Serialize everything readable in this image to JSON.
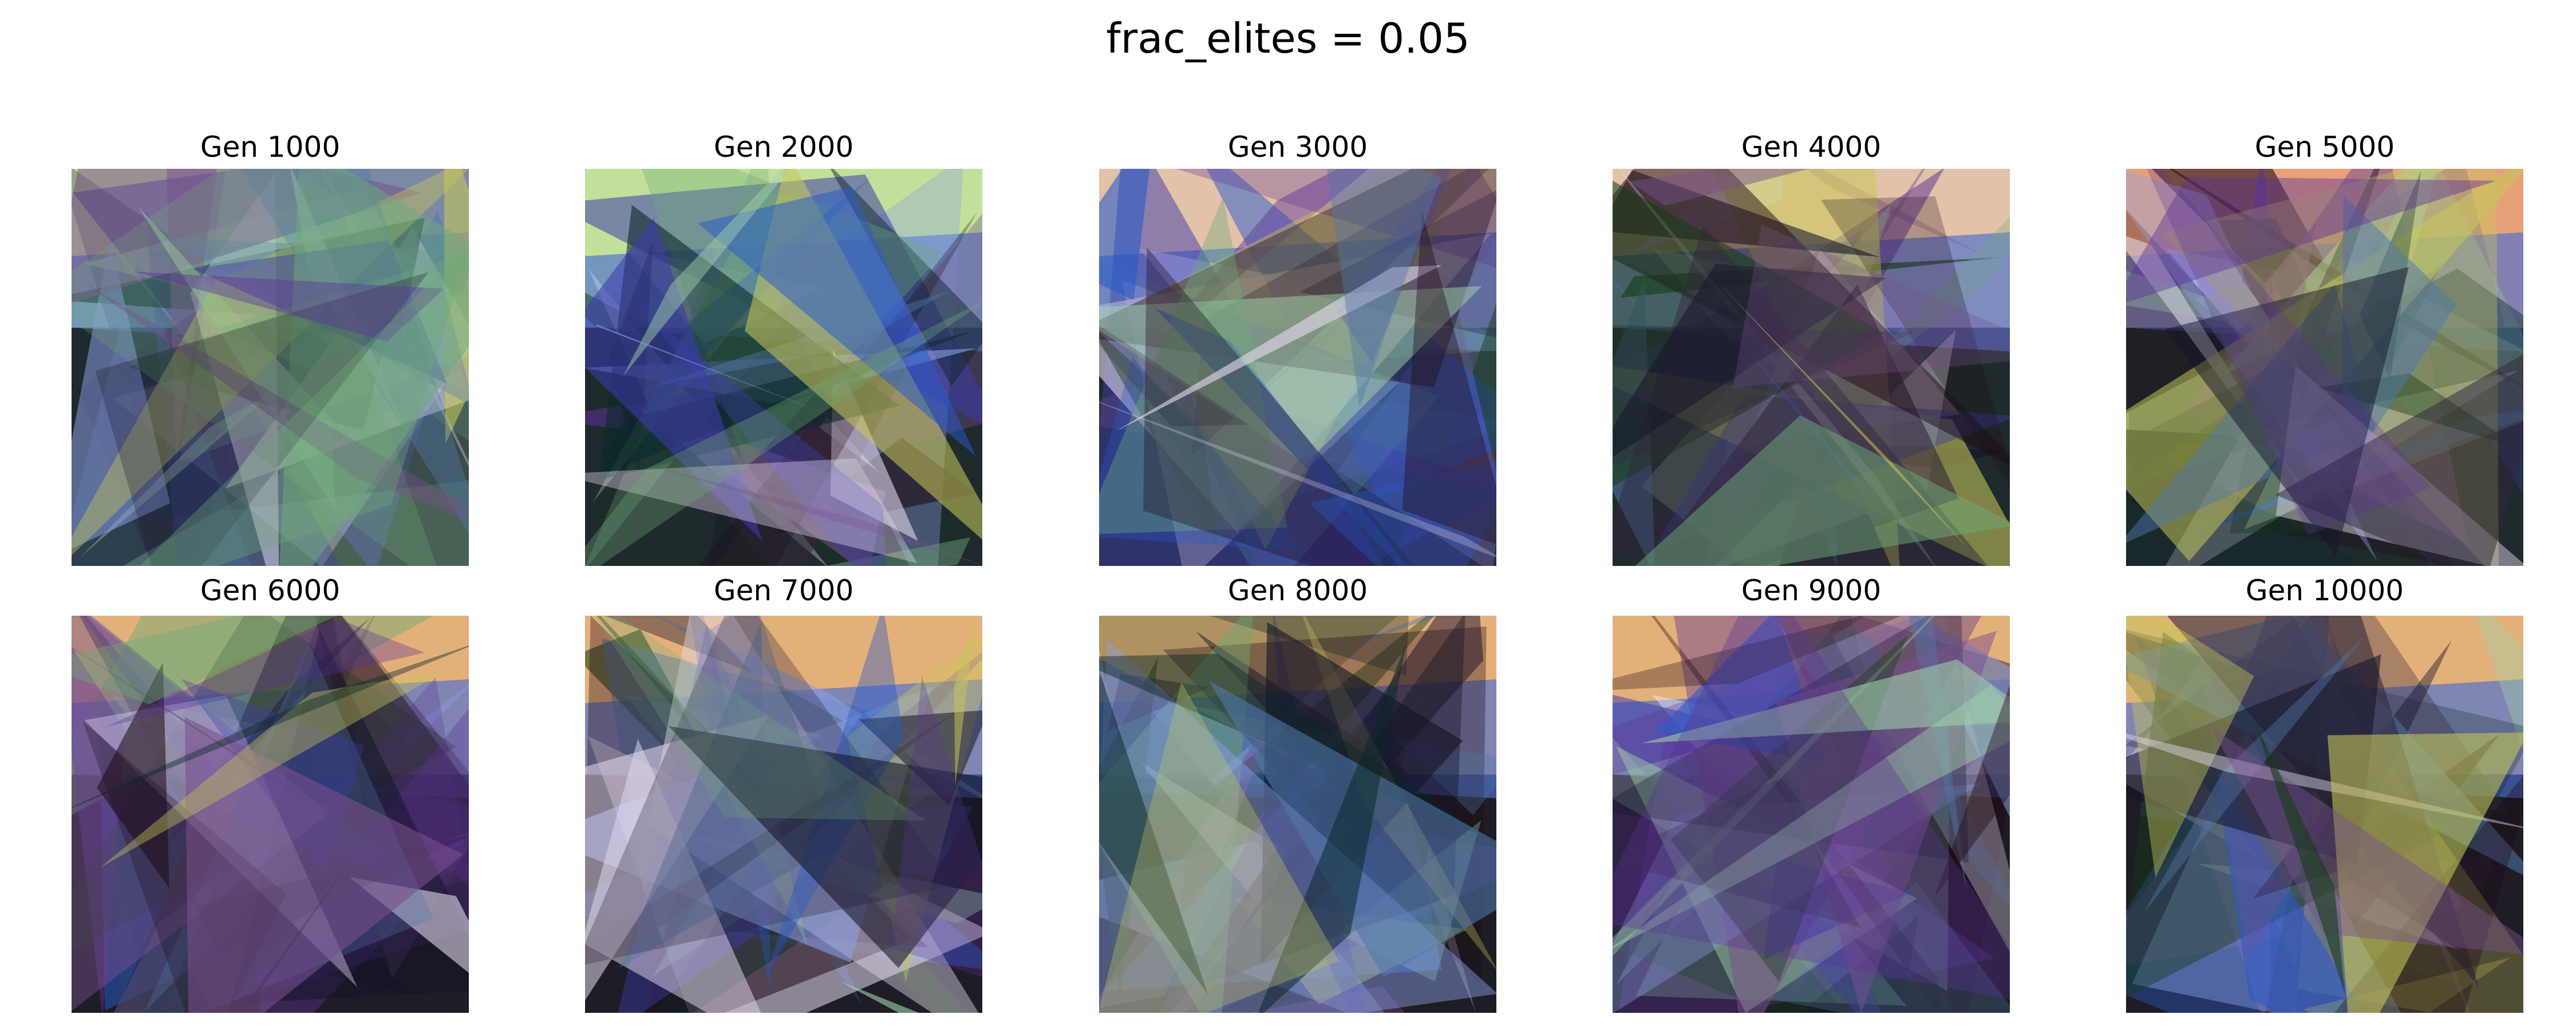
{
  "figure": {
    "title": "frac_elites = 0.05"
  },
  "panels": [
    {
      "title": "Gen 1000"
    },
    {
      "title": "Gen 2000"
    },
    {
      "title": "Gen 3000"
    },
    {
      "title": "Gen 4000"
    },
    {
      "title": "Gen 5000"
    },
    {
      "title": "Gen 6000"
    },
    {
      "title": "Gen 7000"
    },
    {
      "title": "Gen 8000"
    },
    {
      "title": "Gen 9000"
    },
    {
      "title": "Gen 10000"
    }
  ]
}
